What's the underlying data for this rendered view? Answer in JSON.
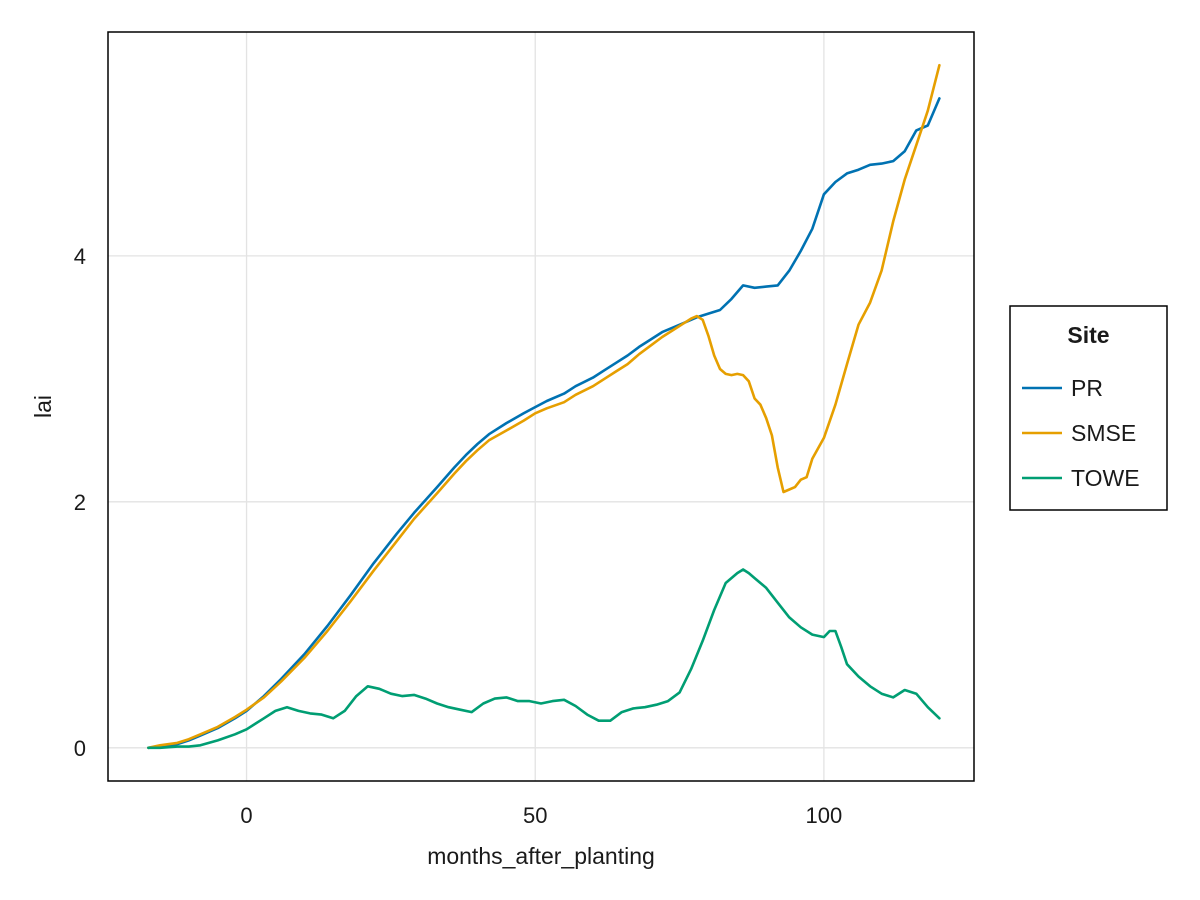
{
  "chart_data": {
    "type": "line",
    "title": "",
    "xlabel": "months_after_planting",
    "ylabel": "lai",
    "xlim": [
      -24,
      126
    ],
    "ylim": [
      -0.27,
      5.82
    ],
    "xticks": [
      0,
      50,
      100
    ],
    "yticks": [
      0,
      2,
      4
    ],
    "grid": true,
    "legend": {
      "title": "Site",
      "placement": "right"
    },
    "series": [
      {
        "name": "PR",
        "color": "#0072b2",
        "x": [
          -17,
          -15,
          -12,
          -10,
          -8,
          -5,
          -2,
          0,
          3,
          6,
          10,
          14,
          18,
          22,
          26,
          29,
          33,
          36,
          38,
          40,
          42,
          45,
          48,
          50,
          52,
          55,
          57,
          60,
          62,
          64,
          66,
          68,
          70,
          72,
          74,
          76,
          78,
          80,
          82,
          84,
          86,
          88,
          90,
          92,
          94,
          96,
          98,
          100,
          102,
          104,
          106,
          108,
          110,
          112,
          114,
          116,
          118,
          120
        ],
        "y": [
          0.0,
          0.01,
          0.03,
          0.06,
          0.1,
          0.16,
          0.24,
          0.3,
          0.42,
          0.56,
          0.76,
          0.99,
          1.24,
          1.5,
          1.74,
          1.91,
          2.12,
          2.28,
          2.38,
          2.47,
          2.55,
          2.64,
          2.72,
          2.77,
          2.82,
          2.88,
          2.94,
          3.01,
          3.07,
          3.13,
          3.19,
          3.26,
          3.32,
          3.38,
          3.42,
          3.46,
          3.5,
          3.53,
          3.56,
          3.65,
          3.76,
          3.74,
          3.75,
          3.76,
          3.88,
          4.04,
          4.22,
          4.5,
          4.6,
          4.67,
          4.7,
          4.74,
          4.75,
          4.77,
          4.85,
          5.02,
          5.06,
          5.28
        ]
      },
      {
        "name": "SMSE",
        "color": "#e69f00",
        "x": [
          -17,
          -15,
          -12,
          -10,
          -8,
          -5,
          -2,
          0,
          3,
          6,
          10,
          14,
          18,
          22,
          26,
          29,
          33,
          36,
          38,
          40,
          42,
          45,
          48,
          50,
          52,
          55,
          57,
          60,
          62,
          64,
          66,
          68,
          70,
          72,
          74,
          76,
          77,
          78,
          79,
          80,
          81,
          82,
          83,
          84,
          85,
          86,
          87,
          88,
          89,
          90,
          91,
          92,
          93,
          94,
          95,
          96,
          97,
          98,
          100,
          102,
          104,
          106,
          108,
          110,
          112,
          114,
          116,
          118,
          120
        ],
        "y": [
          0.0,
          0.02,
          0.04,
          0.07,
          0.11,
          0.17,
          0.25,
          0.31,
          0.41,
          0.54,
          0.73,
          0.95,
          1.19,
          1.44,
          1.68,
          1.86,
          2.07,
          2.23,
          2.33,
          2.42,
          2.5,
          2.58,
          2.66,
          2.72,
          2.76,
          2.81,
          2.87,
          2.94,
          3.0,
          3.06,
          3.12,
          3.2,
          3.27,
          3.34,
          3.4,
          3.46,
          3.49,
          3.51,
          3.48,
          3.35,
          3.19,
          3.08,
          3.04,
          3.03,
          3.04,
          3.03,
          2.98,
          2.84,
          2.79,
          2.68,
          2.54,
          2.28,
          2.08,
          2.1,
          2.12,
          2.18,
          2.2,
          2.35,
          2.52,
          2.79,
          3.12,
          3.44,
          3.62,
          3.88,
          4.28,
          4.62,
          4.9,
          5.18,
          5.55
        ]
      },
      {
        "name": "TOWE",
        "color": "#009e73",
        "x": [
          -17,
          -15,
          -12,
          -10,
          -8,
          -5,
          -2,
          0,
          3,
          5,
          7,
          9,
          11,
          13,
          15,
          17,
          19,
          21,
          23,
          25,
          27,
          29,
          31,
          33,
          35,
          37,
          39,
          41,
          43,
          45,
          47,
          49,
          51,
          53,
          55,
          57,
          59,
          61,
          63,
          65,
          67,
          69,
          71,
          73,
          75,
          77,
          79,
          81,
          83,
          85,
          86,
          87,
          88,
          89,
          90,
          92,
          94,
          96,
          98,
          100,
          101,
          102,
          103,
          104,
          106,
          108,
          110,
          112,
          114,
          116,
          118,
          120
        ],
        "y": [
          0.0,
          0.0,
          0.01,
          0.01,
          0.02,
          0.06,
          0.11,
          0.15,
          0.24,
          0.3,
          0.33,
          0.3,
          0.28,
          0.27,
          0.24,
          0.3,
          0.42,
          0.5,
          0.48,
          0.44,
          0.42,
          0.43,
          0.4,
          0.36,
          0.33,
          0.31,
          0.29,
          0.36,
          0.4,
          0.41,
          0.38,
          0.38,
          0.36,
          0.38,
          0.39,
          0.34,
          0.27,
          0.22,
          0.22,
          0.29,
          0.32,
          0.33,
          0.35,
          0.38,
          0.45,
          0.64,
          0.87,
          1.12,
          1.34,
          1.42,
          1.45,
          1.42,
          1.38,
          1.34,
          1.3,
          1.18,
          1.06,
          0.98,
          0.92,
          0.9,
          0.95,
          0.95,
          0.82,
          0.68,
          0.58,
          0.5,
          0.44,
          0.41,
          0.47,
          0.44,
          0.33,
          0.24
        ]
      }
    ]
  }
}
